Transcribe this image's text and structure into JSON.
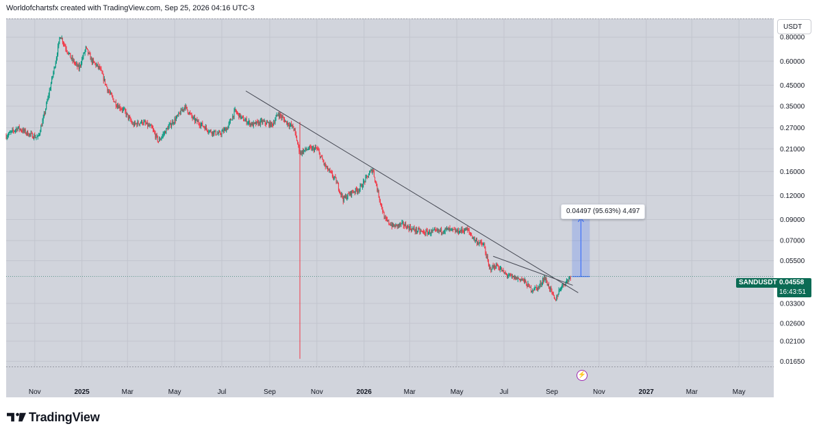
{
  "header": {
    "caption": "Worldofchartsfx created with TradingView.com, Sep 25, 2026 04:16 UTC-3"
  },
  "price_axis": {
    "currency": "USDT"
  },
  "symbol": {
    "name": "SANDUSDT",
    "price": "0.04558",
    "countdown": "16:43:51"
  },
  "measure": {
    "label": "0.04497 (95.63%) 4,497"
  },
  "footer": {
    "brand": "TradingView"
  },
  "colors": {
    "up": "#089981",
    "down": "#f23645",
    "background": "#d1d4dc",
    "tag": "#0b6b54",
    "measure": "#2962ff"
  },
  "icons": {
    "alert": "flash-icon",
    "logo": "tradingview-logo"
  },
  "chart_data": {
    "type": "candlestick",
    "symbol": "SANDUSDT",
    "y_scale": "log",
    "ylim": [
      0.0155,
      1.0
    ],
    "y_ticks": [
      {
        "value": 0.8,
        "label": "0.80000"
      },
      {
        "value": 0.6,
        "label": "0.60000"
      },
      {
        "value": 0.45,
        "label": "0.45000"
      },
      {
        "value": 0.35,
        "label": "0.35000"
      },
      {
        "value": 0.27,
        "label": "0.27000"
      },
      {
        "value": 0.21,
        "label": "0.21000"
      },
      {
        "value": 0.16,
        "label": "0.16000"
      },
      {
        "value": 0.12,
        "label": "0.12000"
      },
      {
        "value": 0.09,
        "label": "0.09000"
      },
      {
        "value": 0.07,
        "label": "0.07000"
      },
      {
        "value": 0.055,
        "label": "0.05500"
      },
      {
        "value": 0.033,
        "label": "0.03300"
      },
      {
        "value": 0.026,
        "label": "0.02600"
      },
      {
        "value": 0.021,
        "label": "0.02100"
      },
      {
        "value": 0.0165,
        "label": "0.01650"
      }
    ],
    "x_range": [
      "2024-09-25",
      "2027-06-15"
    ],
    "x_ticks": [
      {
        "date": "2024-11-01",
        "label": "Nov",
        "bold": false
      },
      {
        "date": "2025-01-01",
        "label": "2025",
        "bold": true
      },
      {
        "date": "2025-03-01",
        "label": "Mar",
        "bold": false
      },
      {
        "date": "2025-05-01",
        "label": "May",
        "bold": false
      },
      {
        "date": "2025-07-01",
        "label": "Jul",
        "bold": false
      },
      {
        "date": "2025-09-01",
        "label": "Sep",
        "bold": false
      },
      {
        "date": "2025-11-01",
        "label": "Nov",
        "bold": false
      },
      {
        "date": "2026-01-01",
        "label": "2026",
        "bold": true
      },
      {
        "date": "2026-03-01",
        "label": "Mar",
        "bold": false
      },
      {
        "date": "2026-05-01",
        "label": "May",
        "bold": false
      },
      {
        "date": "2026-07-01",
        "label": "Jul",
        "bold": false
      },
      {
        "date": "2026-09-01",
        "label": "Sep",
        "bold": false
      },
      {
        "date": "2026-11-01",
        "label": "Nov",
        "bold": false
      },
      {
        "date": "2027-01-01",
        "label": "2027",
        "bold": true
      },
      {
        "date": "2027-03-01",
        "label": "Mar",
        "bold": false
      },
      {
        "date": "2027-05-01",
        "label": "May",
        "bold": false
      }
    ],
    "close_path": [
      {
        "date": "2024-09-25",
        "close": 0.245
      },
      {
        "date": "2024-10-10",
        "close": 0.27
      },
      {
        "date": "2024-10-25",
        "close": 0.25
      },
      {
        "date": "2024-11-05",
        "close": 0.24
      },
      {
        "date": "2024-11-12",
        "close": 0.3
      },
      {
        "date": "2024-11-20",
        "close": 0.42
      },
      {
        "date": "2024-11-28",
        "close": 0.6
      },
      {
        "date": "2024-12-04",
        "close": 0.82
      },
      {
        "date": "2024-12-10",
        "close": 0.72
      },
      {
        "date": "2024-12-18",
        "close": 0.62
      },
      {
        "date": "2024-12-28",
        "close": 0.55
      },
      {
        "date": "2025-01-06",
        "close": 0.7
      },
      {
        "date": "2025-01-14",
        "close": 0.6
      },
      {
        "date": "2025-01-24",
        "close": 0.55
      },
      {
        "date": "2025-02-04",
        "close": 0.42
      },
      {
        "date": "2025-02-14",
        "close": 0.36
      },
      {
        "date": "2025-02-25",
        "close": 0.33
      },
      {
        "date": "2025-03-08",
        "close": 0.28
      },
      {
        "date": "2025-03-20",
        "close": 0.29
      },
      {
        "date": "2025-04-01",
        "close": 0.27
      },
      {
        "date": "2025-04-10",
        "close": 0.23
      },
      {
        "date": "2025-04-22",
        "close": 0.27
      },
      {
        "date": "2025-05-05",
        "close": 0.31
      },
      {
        "date": "2025-05-14",
        "close": 0.35
      },
      {
        "date": "2025-05-25",
        "close": 0.3
      },
      {
        "date": "2025-06-05",
        "close": 0.28
      },
      {
        "date": "2025-06-15",
        "close": 0.26
      },
      {
        "date": "2025-06-28",
        "close": 0.25
      },
      {
        "date": "2025-07-08",
        "close": 0.27
      },
      {
        "date": "2025-07-18",
        "close": 0.33
      },
      {
        "date": "2025-07-28",
        "close": 0.3
      },
      {
        "date": "2025-08-10",
        "close": 0.28
      },
      {
        "date": "2025-08-22",
        "close": 0.29
      },
      {
        "date": "2025-09-04",
        "close": 0.28
      },
      {
        "date": "2025-09-12",
        "close": 0.32
      },
      {
        "date": "2025-09-22",
        "close": 0.29
      },
      {
        "date": "2025-10-02",
        "close": 0.27
      },
      {
        "date": "2025-10-10",
        "close": 0.2
      },
      {
        "date": "2025-10-20",
        "close": 0.21
      },
      {
        "date": "2025-11-01",
        "close": 0.21
      },
      {
        "date": "2025-11-12",
        "close": 0.17
      },
      {
        "date": "2025-11-25",
        "close": 0.145
      },
      {
        "date": "2025-12-05",
        "close": 0.115
      },
      {
        "date": "2025-12-16",
        "close": 0.125
      },
      {
        "date": "2025-12-26",
        "close": 0.13
      },
      {
        "date": "2026-01-05",
        "close": 0.15
      },
      {
        "date": "2026-01-12",
        "close": 0.165
      },
      {
        "date": "2026-01-20",
        "close": 0.12
      },
      {
        "date": "2026-01-28",
        "close": 0.09
      },
      {
        "date": "2026-02-08",
        "close": 0.083
      },
      {
        "date": "2026-02-20",
        "close": 0.085
      },
      {
        "date": "2026-03-05",
        "close": 0.08
      },
      {
        "date": "2026-03-20",
        "close": 0.077
      },
      {
        "date": "2026-04-05",
        "close": 0.078
      },
      {
        "date": "2026-04-18",
        "close": 0.08
      },
      {
        "date": "2026-05-01",
        "close": 0.078
      },
      {
        "date": "2026-05-14",
        "close": 0.08
      },
      {
        "date": "2026-05-25",
        "close": 0.07
      },
      {
        "date": "2026-06-05",
        "close": 0.066
      },
      {
        "date": "2026-06-12",
        "close": 0.05
      },
      {
        "date": "2026-06-22",
        "close": 0.052
      },
      {
        "date": "2026-07-02",
        "close": 0.047
      },
      {
        "date": "2026-07-12",
        "close": 0.045
      },
      {
        "date": "2026-07-25",
        "close": 0.044
      },
      {
        "date": "2026-08-05",
        "close": 0.039
      },
      {
        "date": "2026-08-15",
        "close": 0.04
      },
      {
        "date": "2026-08-22",
        "close": 0.045
      },
      {
        "date": "2026-08-30",
        "close": 0.039
      },
      {
        "date": "2026-09-05",
        "close": 0.034
      },
      {
        "date": "2026-09-12",
        "close": 0.04
      },
      {
        "date": "2026-09-20",
        "close": 0.043
      },
      {
        "date": "2026-09-25",
        "close": 0.04558
      }
    ],
    "trendlines": [
      {
        "start": {
          "date": "2025-08-01",
          "value": 0.42
        },
        "end": {
          "date": "2026-10-05",
          "value": 0.0375
        }
      },
      {
        "start": {
          "date": "2026-06-17",
          "value": 0.058
        },
        "end": {
          "date": "2026-09-28",
          "value": 0.041
        }
      }
    ],
    "vertical_marker": {
      "date": "2025-10-10",
      "value_top": 0.29,
      "value_bottom": 0.017
    },
    "measure_range": {
      "start_date": "2026-09-27",
      "end_date": "2026-10-20",
      "low": 0.0455,
      "high": 0.092
    }
  }
}
